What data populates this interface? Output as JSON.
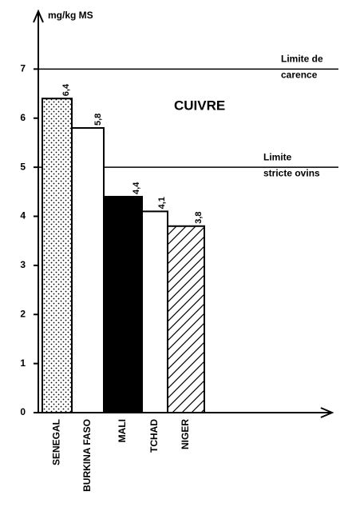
{
  "chart_data": {
    "type": "bar",
    "annotation": "CUIVRE",
    "y_label": "mg/kg  MS",
    "categories": [
      "SENEGAL",
      "BURKINA FASO",
      "MALI",
      "TCHAD",
      "NIGER"
    ],
    "values": [
      6.4,
      5.8,
      4.4,
      4.1,
      3.8
    ],
    "value_labels": [
      "6,4",
      "5,8",
      "4,4",
      "4,1",
      "3,8"
    ],
    "fills": [
      "dots",
      "white",
      "black",
      "white",
      "hatch"
    ],
    "ylim": [
      0,
      8
    ],
    "yticks": [
      0,
      1,
      2,
      3,
      4,
      5,
      6,
      7
    ],
    "reference_lines": [
      {
        "value": 7,
        "label_lines": [
          "Limite de",
          "carence"
        ]
      },
      {
        "value": 5,
        "label_lines": [
          "Limite",
          "stricte  ovins"
        ]
      }
    ]
  }
}
